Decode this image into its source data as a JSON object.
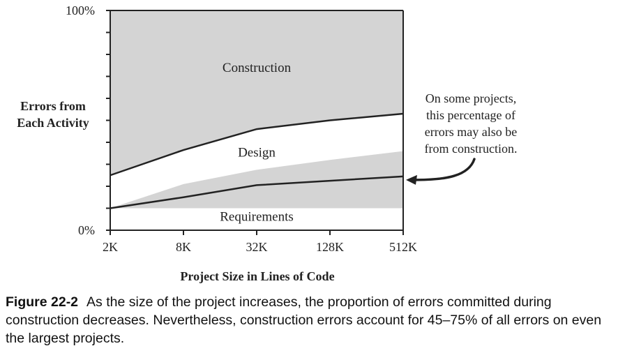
{
  "chart_data": {
    "type": "area",
    "ylabel": [
      "Errors from",
      "Each Activity"
    ],
    "xlabel": "Project Size in Lines of Code",
    "categories": [
      "2K",
      "8K",
      "32K",
      "128K",
      "512K"
    ],
    "y_ticks": [
      "0%",
      "100%"
    ],
    "ylim": [
      0,
      100
    ],
    "series": [
      {
        "name": "Requirements",
        "boundary": [
          10,
          15,
          20.5,
          22.5,
          24.5
        ]
      },
      {
        "name": "Design",
        "boundary": [
          25,
          36.5,
          46,
          50,
          53
        ]
      },
      {
        "name": "Construction",
        "boundary": [
          100,
          100,
          100,
          100,
          100
        ]
      }
    ],
    "shaded_band": {
      "lower": [
        10,
        10,
        10,
        10,
        10
      ],
      "upper": [
        10,
        21,
        27.5,
        32,
        36
      ]
    },
    "annotation": {
      "lines": [
        "On some projects,",
        "this percentage of",
        "errors may also be",
        "from construction."
      ]
    },
    "colors": {
      "shade": "#d4d4d4",
      "line": "#222222",
      "arrow": "#222222"
    }
  },
  "caption": {
    "figure_label": "Figure 22-2",
    "text": "As the size of the project increases, the proportion of errors committed during construction decreases. Nevertheless, construction errors account for 45–75% of all errors on even the largest projects."
  }
}
